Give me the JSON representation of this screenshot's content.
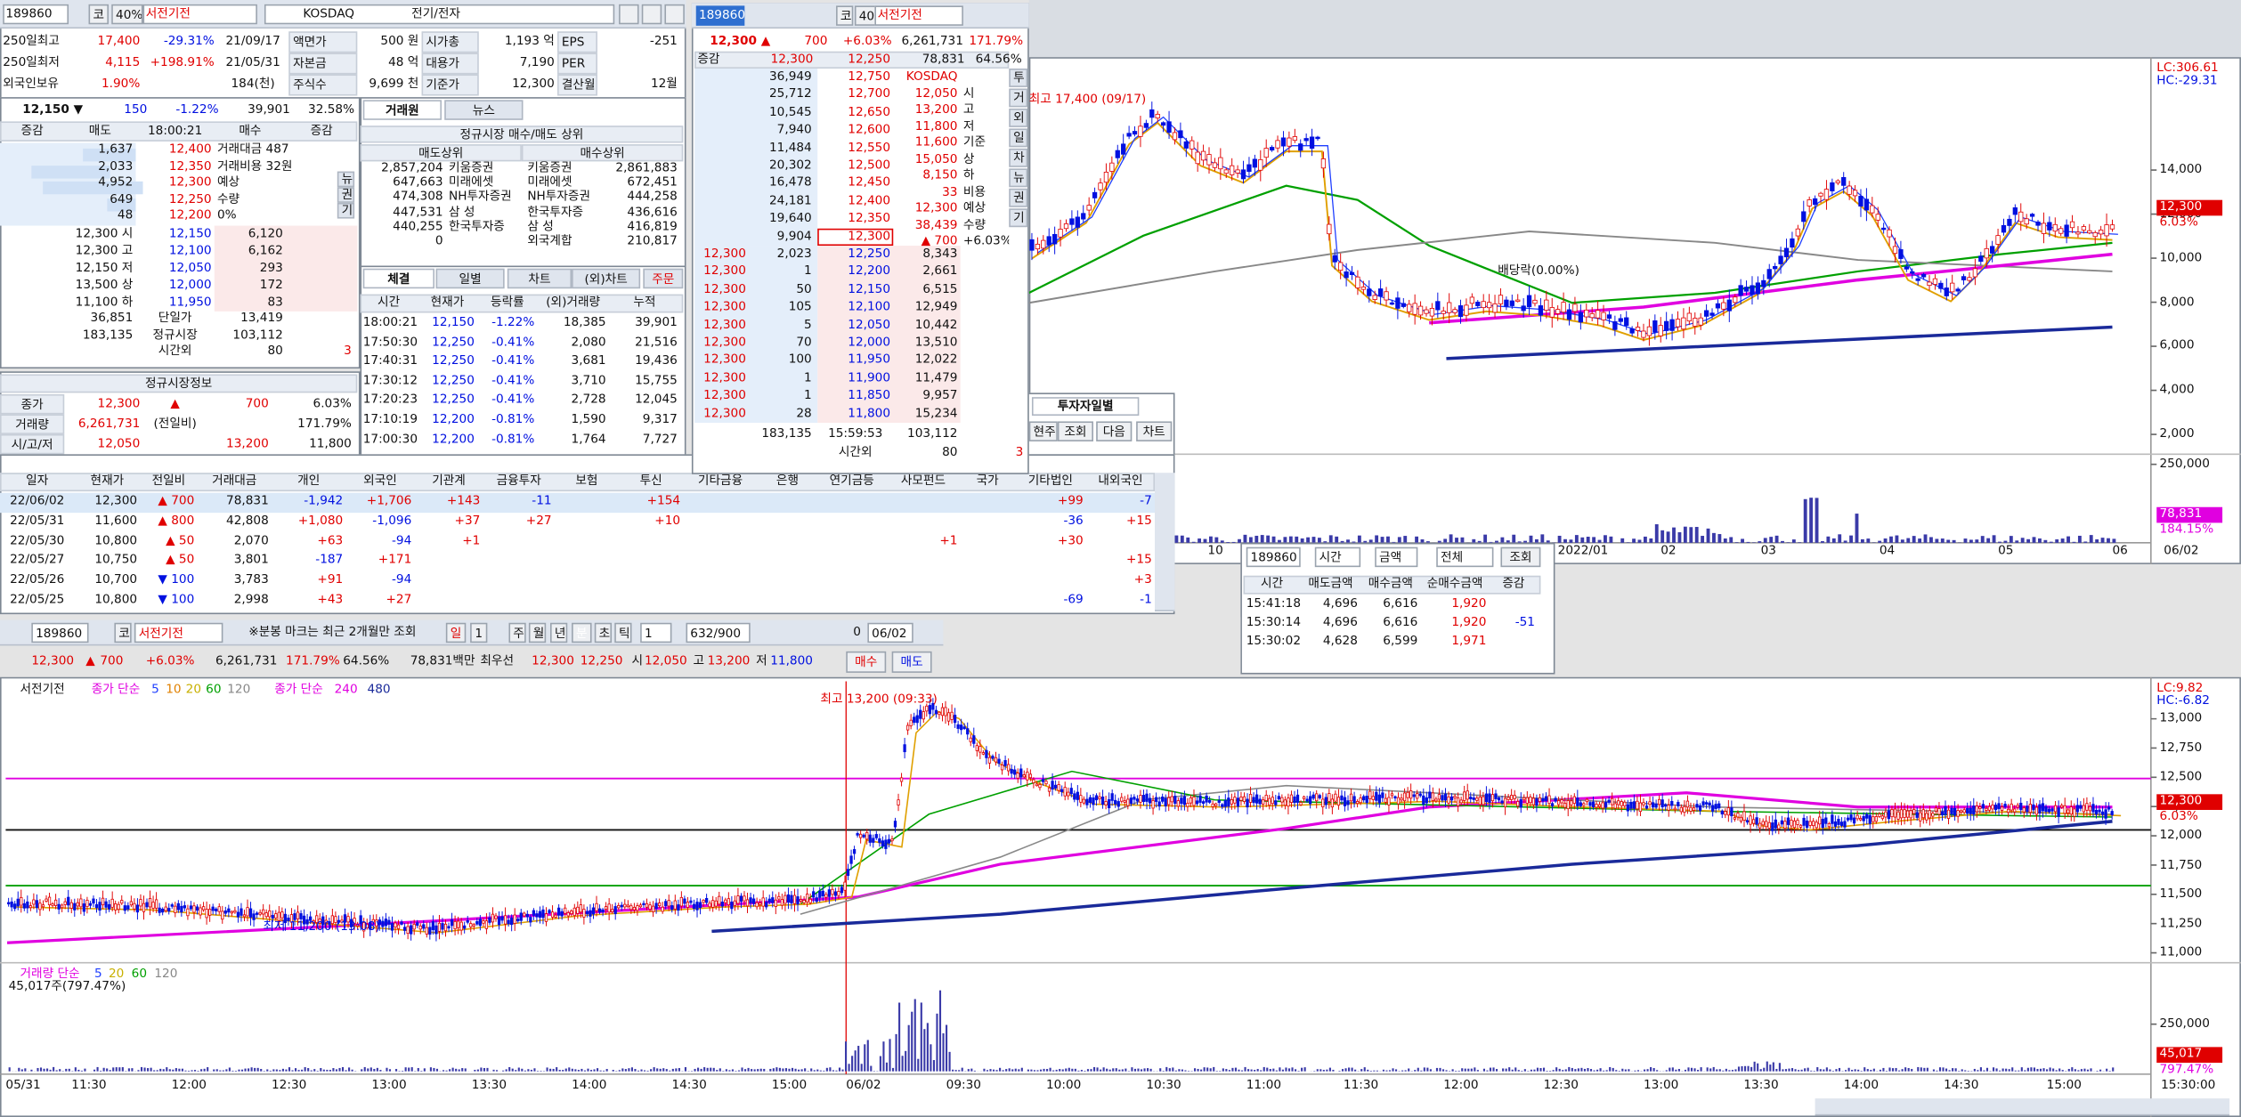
{
  "info": {
    "code": "189860",
    "market_flag": "코",
    "margin": "40%",
    "name": "서전기전",
    "market": "KOSDAQ",
    "sector": "전기/전자",
    "rows": [
      [
        "250일최고",
        "17,400",
        "-29.31%",
        "21/09/17",
        "액면가",
        "500 원",
        "시가총",
        "1,193 억",
        "EPS",
        "-251"
      ],
      [
        "250일최저",
        "4,115",
        "+198.91%",
        "21/05/31",
        "자본금",
        "48 억",
        "대용가",
        "7,190",
        "PER",
        null
      ],
      [
        "외국인보유",
        "1.90%",
        null,
        "184(천)",
        "주식수",
        "9,699 천",
        "기준가",
        "12,300",
        "결산월",
        "12월"
      ]
    ]
  },
  "quote": [
    "12,150 ▼",
    "150",
    "-1.22%",
    "39,901",
    "32.58%"
  ],
  "orderbook": {
    "headers": [
      "증감",
      "매도",
      "18:00:21",
      "매수",
      "증감"
    ],
    "asks": [
      [
        "1,637",
        "12,400",
        "거래대금 487"
      ],
      [
        "2,033",
        "12,350",
        "거래비용 32원"
      ],
      [
        "4,952",
        "12,300",
        "예상"
      ],
      [
        "649",
        "12,250",
        "수량"
      ],
      [
        "48",
        "12,200",
        "0%"
      ]
    ],
    "bids": [
      [
        "12,300 시",
        "12,150",
        "6,120"
      ],
      [
        "12,300 고",
        "12,100",
        "6,162"
      ],
      [
        "12,150 저",
        "12,050",
        "293"
      ],
      [
        "13,500 상",
        "12,000",
        "172"
      ],
      [
        "11,100 하",
        "11,950",
        "83"
      ]
    ],
    "totals": [
      [
        "36,851",
        "단일가",
        "13,419",
        null
      ],
      [
        "183,135",
        "정규시장",
        "103,112",
        null
      ],
      [
        null,
        "시간외",
        "80",
        "3"
      ]
    ],
    "side_tabs": [
      "뉴",
      "권",
      "기"
    ]
  },
  "regular": {
    "title": "정규시장정보",
    "rows": [
      [
        "종가",
        "12,300",
        "▲",
        "700",
        "6.03%"
      ],
      [
        "거래량",
        "6,261,731",
        "(전일비)",
        null,
        "171.79%"
      ],
      [
        "시/고/저",
        "12,050",
        null,
        "13,200",
        "11,800"
      ]
    ]
  },
  "brokers": {
    "tabs": [
      "거래원",
      "뉴스"
    ],
    "title": "정규시장 매수/매도 상위",
    "headers": [
      "매도상위",
      "매수상위"
    ],
    "rows": [
      [
        "2,857,204",
        "키움증권",
        "키움증권",
        "2,861,883"
      ],
      [
        "647,663",
        "미래에셋",
        "미래에셋",
        "672,451"
      ],
      [
        "474,308",
        "NH투자증권",
        "NH투자증권",
        "444,258"
      ],
      [
        "447,531",
        "삼 성",
        "한국투자증",
        "436,616"
      ],
      [
        "440,255",
        "한국투자증",
        "삼 성",
        "416,819"
      ],
      [
        "0",
        null,
        "외국계합",
        "210,817"
      ]
    ]
  },
  "trades": {
    "tabs": [
      "체결",
      "일별",
      "차트",
      "(외)차트",
      "주문"
    ],
    "headers": [
      "시간",
      "현재가",
      "등락률",
      "(외)거래량",
      "누적"
    ],
    "rows": [
      [
        "18:00:21",
        "12,150",
        "-1.22%",
        "18,385",
        "39,901"
      ],
      [
        "17:50:30",
        "12,250",
        "-0.41%",
        "2,080",
        "21,516"
      ],
      [
        "17:40:31",
        "12,250",
        "-0.41%",
        "3,681",
        "19,436"
      ],
      [
        "17:30:12",
        "12,250",
        "-0.41%",
        "3,710",
        "15,755"
      ],
      [
        "17:20:23",
        "12,250",
        "-0.41%",
        "2,728",
        "12,045"
      ],
      [
        "17:10:19",
        "12,200",
        "-0.81%",
        "1,590",
        "9,317"
      ],
      [
        "17:00:30",
        "12,200",
        "-0.81%",
        "1,764",
        "7,727"
      ]
    ]
  },
  "mid_book": {
    "code": "189860",
    "flag": "코",
    "margin": "40%",
    "name": "서전기전",
    "quote": [
      "12,300 ▲",
      "700",
      "+6.03%",
      "6,261,731",
      "171.79%"
    ],
    "summary": [
      "증감",
      "12,300",
      "12,250",
      "78,831",
      "64.56%"
    ],
    "asks": [
      [
        "36,949",
        "12,750"
      ],
      [
        "25,712",
        "12,700"
      ],
      [
        "10,545",
        "12,650"
      ],
      [
        "7,940",
        "12,600"
      ],
      [
        "11,484",
        "12,550"
      ],
      [
        "20,302",
        "12,500"
      ],
      [
        "16,478",
        "12,450"
      ],
      [
        "24,181",
        "12,400"
      ],
      [
        "19,640",
        "12,350"
      ],
      [
        "9,904",
        "12,300"
      ]
    ],
    "info": [
      [
        "KOSDAQ",
        null
      ],
      [
        "12,050",
        "시"
      ],
      [
        "13,200",
        "고"
      ],
      [
        "11,800",
        "저"
      ],
      [
        "11,600",
        "기준"
      ],
      [
        "15,050",
        "상"
      ],
      [
        "8,150",
        "하"
      ],
      [
        "33",
        "비용"
      ],
      [
        "12,300",
        "예상"
      ],
      [
        "38,439",
        "수량"
      ],
      [
        "▲ 700",
        "+6.03%"
      ]
    ],
    "bids": [
      [
        "12,300",
        "2,023",
        "12,250",
        "8,343"
      ],
      [
        "12,300",
        "1",
        "12,200",
        "2,661"
      ],
      [
        "12,300",
        "50",
        "12,150",
        "6,515"
      ],
      [
        "12,300",
        "105",
        "12,100",
        "12,949"
      ],
      [
        "12,300",
        "5",
        "12,050",
        "10,442"
      ],
      [
        "12,300",
        "70",
        "12,000",
        "13,510"
      ],
      [
        "12,300",
        "100",
        "11,950",
        "12,022"
      ],
      [
        "12,300",
        "1",
        "11,900",
        "11,479"
      ],
      [
        "12,300",
        "1",
        "11,850",
        "9,957"
      ],
      [
        "12,300",
        "28",
        "11,800",
        "15,234"
      ]
    ],
    "totals": [
      [
        "183,135",
        "15:59:53",
        "103,112"
      ],
      [
        null,
        "시간외",
        "80",
        "3"
      ]
    ],
    "side_tabs": [
      "투",
      "거",
      "외",
      "일",
      "차",
      "뉴",
      "권",
      "기"
    ]
  },
  "investor": {
    "title": "투자자일별",
    "buttons": [
      "현주",
      "조회",
      "다음",
      "차트"
    ],
    "headers": [
      "일자",
      "현재가",
      "전일비",
      "거래대금",
      "개인",
      "외국인",
      "기관계",
      "금융투자",
      "보험",
      "투신",
      "기타금융",
      "은행",
      "연기금등",
      "사모펀드",
      "국가",
      "기타법인",
      "내외국인"
    ],
    "rows": [
      [
        "22/06/02",
        "12,300",
        "▲ 700",
        "78,831",
        "-1,942",
        "+1,706",
        "+143",
        "-11",
        null,
        "+154",
        null,
        null,
        null,
        null,
        null,
        "+99",
        "-7"
      ],
      [
        "22/05/31",
        "11,600",
        "▲ 800",
        "42,808",
        "+1,080",
        "-1,096",
        "+37",
        "+27",
        null,
        "+10",
        null,
        null,
        null,
        null,
        null,
        "-36",
        "+15"
      ],
      [
        "22/05/30",
        "10,800",
        "▲ 50",
        "2,070",
        "+63",
        "-94",
        "+1",
        null,
        null,
        null,
        null,
        null,
        null,
        "+1",
        null,
        "+30",
        null
      ],
      [
        "22/05/27",
        "10,750",
        "▲ 50",
        "3,801",
        "-187",
        "+171",
        null,
        null,
        null,
        null,
        null,
        null,
        null,
        null,
        null,
        null,
        "+15"
      ],
      [
        "22/05/26",
        "10,700",
        "▼ 100",
        "3,783",
        "+91",
        "-94",
        null,
        null,
        null,
        null,
        null,
        null,
        null,
        null,
        null,
        null,
        "+3"
      ],
      [
        "22/05/25",
        "10,800",
        "▼ 100",
        "2,998",
        "+43",
        "+27",
        null,
        null,
        null,
        null,
        null,
        null,
        null,
        null,
        null,
        "-69",
        "-1"
      ]
    ]
  },
  "time_sales": {
    "toolbar": [
      "189860",
      "시간",
      "금액",
      "전체",
      "조회"
    ],
    "headers": [
      "시간",
      "매도금액",
      "매수금액",
      "순매수금액",
      "증감"
    ],
    "rows": [
      [
        "15:41:18",
        "4,696",
        "6,616",
        "1,920",
        null
      ],
      [
        "15:30:14",
        "4,696",
        "6,616",
        "1,920",
        "-51"
      ],
      [
        "15:30:02",
        "4,628",
        "6,599",
        "1,971",
        null
      ]
    ]
  },
  "daily_chart": {
    "type": "candlestick",
    "title_note": "최고 17,400 (09/17)",
    "event": "배당락(0.00%)",
    "lc": "LC:306.61",
    "hc": "HC:-29.31",
    "last_price": "12,300",
    "last_change": "6.03%",
    "ylim": [
      1100,
      18800
    ],
    "yticks": [
      {
        "value": 2000,
        "label": "2,000"
      },
      {
        "value": 4000,
        "label": "4,000"
      },
      {
        "value": 6000,
        "label": "6,000"
      },
      {
        "value": 8000,
        "label": "8,000"
      },
      {
        "value": 10000,
        "label": "10,000"
      },
      {
        "value": 12000,
        "label": "12,000"
      },
      {
        "value": 14000,
        "label": "14,000"
      }
    ],
    "volume_ylim": [
      0,
      282000
    ],
    "volume_yticks": [
      {
        "value": 250000,
        "label": "250,000"
      }
    ],
    "volume_last": "78,831",
    "volume_ratio": "184.15%",
    "x_labels": [
      "10",
      "2022/01",
      "02",
      "03",
      "04",
      "05",
      "06",
      "06/02"
    ]
  },
  "minute_toolbar": [
    "189860",
    "코",
    "서전기전",
    "※분봉 마크는 최근 2개월만 조회",
    "일",
    "1",
    "주",
    "월",
    "년",
    "분",
    "초",
    "틱",
    "1",
    "632/900",
    "0",
    "06/02"
  ],
  "minute_info": [
    "12,300",
    "▲",
    "700",
    "+6.03%",
    "6,261,731",
    "171.79%",
    "64.56%",
    "78,831백만",
    "최우선",
    "12,300",
    "12,250",
    "시",
    "12,050",
    "고",
    "13,200",
    "저",
    "11,800",
    "매수",
    "매도"
  ],
  "minute_chart": {
    "type": "candlestick",
    "legend": [
      "서전기전",
      "종가 단순",
      "5",
      "10",
      "20",
      "60",
      "120",
      "종가 단순",
      "240",
      "480"
    ],
    "high_note": "최고 13,200 (09:33)",
    "low_note": "최저 11,200 (13:08)",
    "lc": "LC:9.82",
    "hc": "HC:-6.82",
    "last_price": "12,300",
    "last_change": "6.03%",
    "ylim": [
      10940,
      13320
    ],
    "yticks": [
      {
        "value": 11000,
        "label": "11,000"
      },
      {
        "value": 11250,
        "label": "11,250"
      },
      {
        "value": 11500,
        "label": "11,500"
      },
      {
        "value": 11750,
        "label": "11,750"
      },
      {
        "value": 12000,
        "label": "12,000"
      },
      {
        "value": 12250,
        "label": "12,250"
      },
      {
        "value": 12500,
        "label": "12,500"
      },
      {
        "value": 12750,
        "label": "12,750"
      },
      {
        "value": 13000,
        "label": "13,000"
      }
    ],
    "volume_legend": [
      "거래량 단순",
      "5",
      "20",
      "60",
      "120"
    ],
    "volume_note": "45,017주(797.47%)",
    "volume_ylim": [
      0,
      560000
    ],
    "volume_yticks": [
      {
        "value": 250000,
        "label": "250,000"
      }
    ],
    "volume_last": "45,017",
    "volume_ratio": "797.47%",
    "x_labels": [
      "05/31",
      "11:30",
      "12:00",
      "12:30",
      "13:00",
      "13:30",
      "14:00",
      "14:30",
      "15:00",
      "06/02",
      "09:30",
      "10:00",
      "10:30",
      "11:00",
      "11:30",
      "12:00",
      "12:30",
      "13:00",
      "13:30",
      "14:00",
      "14:30",
      "15:00",
      "15:30:00"
    ]
  }
}
